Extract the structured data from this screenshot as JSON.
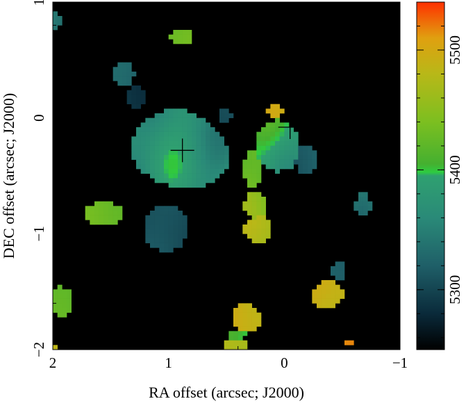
{
  "chart_data": {
    "type": "heatmap",
    "title": "",
    "xlabel": "RA offset (arcsec; J2000)",
    "ylabel": "DEC offset (arcsec; J2000)",
    "xlim": [
      2,
      -1
    ],
    "ylim": [
      -2,
      1
    ],
    "x_ticks": [
      {
        "value": 2,
        "label": "2"
      },
      {
        "value": 1,
        "label": "1"
      },
      {
        "value": 0,
        "label": "0"
      },
      {
        "value": -1,
        "label": "−1"
      }
    ],
    "y_ticks": [
      {
        "value": 1,
        "label": "1"
      },
      {
        "value": 0,
        "label": "0"
      },
      {
        "value": -1,
        "label": "−1"
      },
      {
        "value": -2,
        "label": "−2"
      }
    ],
    "background_color": "#000000",
    "colorbar": {
      "range": [
        5250,
        5540
      ],
      "ticks": [
        {
          "value": 5300,
          "label": "5300"
        },
        {
          "value": 5400,
          "label": "5400"
        },
        {
          "value": 5500,
          "label": "5500"
        }
      ],
      "stops": [
        {
          "value": 5250,
          "color": "#000000"
        },
        {
          "value": 5280,
          "color": "#0a2a3a"
        },
        {
          "value": 5320,
          "color": "#1f5f68"
        },
        {
          "value": 5360,
          "color": "#2a8a78"
        },
        {
          "value": 5395,
          "color": "#2fa070"
        },
        {
          "value": 5398,
          "color": "#2ecc40"
        },
        {
          "value": 5405,
          "color": "#45b030"
        },
        {
          "value": 5440,
          "color": "#7cbf20"
        },
        {
          "value": 5480,
          "color": "#b8b818"
        },
        {
          "value": 5510,
          "color": "#e0a010"
        },
        {
          "value": 5540,
          "color": "#ff3000"
        }
      ]
    },
    "markers": [
      {
        "type": "cross",
        "x": 0.88,
        "y": -0.28
      },
      {
        "type": "cross",
        "x": -0.05,
        "y": -0.08
      }
    ],
    "blobs": [
      {
        "x": 2.0,
        "y": 0.83,
        "rx": 0.08,
        "ry": 0.08,
        "value": 5340,
        "variation": 12
      },
      {
        "x": 0.9,
        "y": 0.7,
        "rx": 0.09,
        "ry": 0.08,
        "value": 5430,
        "variation": 8
      },
      {
        "x": 1.39,
        "y": 0.38,
        "rx": 0.1,
        "ry": 0.1,
        "value": 5330,
        "variation": 10
      },
      {
        "x": 1.28,
        "y": 0.18,
        "rx": 0.08,
        "ry": 0.09,
        "value": 5290,
        "variation": 8
      },
      {
        "x": 0.9,
        "y": -0.28,
        "rx": 0.4,
        "ry": 0.35,
        "value": 5370,
        "variation": 30
      },
      {
        "x": 0.52,
        "y": 0.02,
        "rx": 0.06,
        "ry": 0.06,
        "value": 5310,
        "variation": 6
      },
      {
        "x": 0.05,
        "y": -0.25,
        "rx": 0.2,
        "ry": 0.22,
        "value": 5390,
        "variation": 35
      },
      {
        "x": 0.08,
        "y": 0.07,
        "rx": 0.06,
        "ry": 0.05,
        "value": 5490,
        "variation": 10
      },
      {
        "x": -0.18,
        "y": -0.35,
        "rx": 0.1,
        "ry": 0.12,
        "value": 5320,
        "variation": 10
      },
      {
        "x": 0.27,
        "y": -0.45,
        "rx": 0.08,
        "ry": 0.17,
        "value": 5420,
        "variation": 20
      },
      {
        "x": 0.25,
        "y": -0.75,
        "rx": 0.11,
        "ry": 0.12,
        "value": 5440,
        "variation": 25
      },
      {
        "x": 0.23,
        "y": -0.95,
        "rx": 0.12,
        "ry": 0.12,
        "value": 5470,
        "variation": 15
      },
      {
        "x": 1.55,
        "y": -0.83,
        "rx": 0.16,
        "ry": 0.1,
        "value": 5430,
        "variation": 8
      },
      {
        "x": 1.03,
        "y": -0.95,
        "rx": 0.19,
        "ry": 0.2,
        "value": 5310,
        "variation": 8
      },
      {
        "x": -0.68,
        "y": -0.75,
        "rx": 0.07,
        "ry": 0.1,
        "value": 5350,
        "variation": 25
      },
      {
        "x": -0.47,
        "y": -1.32,
        "rx": 0.06,
        "ry": 0.07,
        "value": 5320,
        "variation": 6
      },
      {
        "x": -0.37,
        "y": -1.52,
        "rx": 0.13,
        "ry": 0.12,
        "value": 5490,
        "variation": 10
      },
      {
        "x": 1.93,
        "y": -1.58,
        "rx": 0.12,
        "ry": 0.13,
        "value": 5420,
        "variation": 8
      },
      {
        "x": 0.32,
        "y": -1.73,
        "rx": 0.12,
        "ry": 0.12,
        "value": 5490,
        "variation": 10
      },
      {
        "x": 0.4,
        "y": -1.88,
        "rx": 0.07,
        "ry": 0.06,
        "value": 5400,
        "variation": 15
      },
      {
        "x": 0.42,
        "y": -1.97,
        "rx": 0.11,
        "ry": 0.06,
        "value": 5470,
        "variation": 10
      },
      {
        "x": 1.98,
        "y": -1.97,
        "rx": 0.02,
        "ry": 0.03,
        "value": 5480,
        "variation": 5
      },
      {
        "x": -0.57,
        "y": -1.93,
        "rx": 0.05,
        "ry": 0.02,
        "value": 5520,
        "variation": 5
      }
    ]
  }
}
